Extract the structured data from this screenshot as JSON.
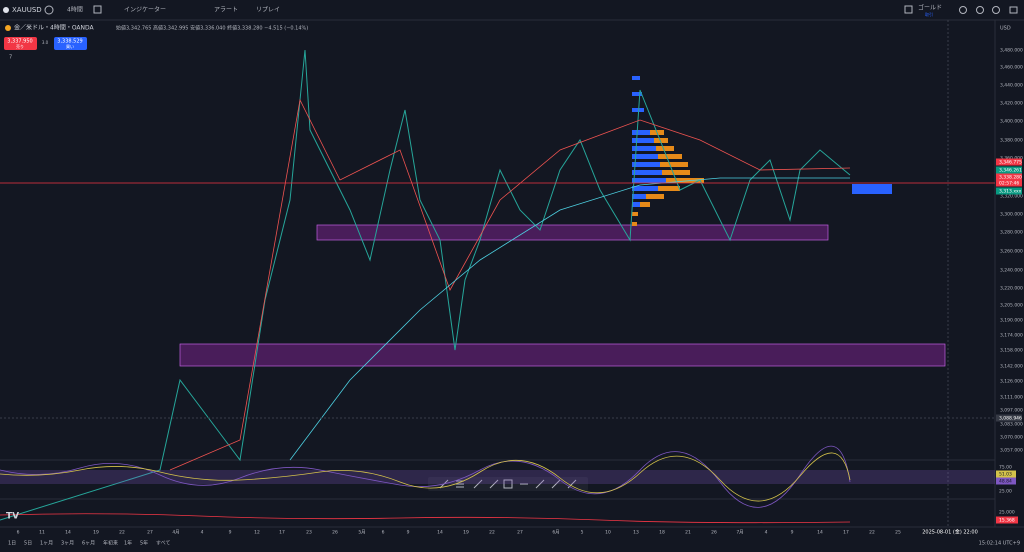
{
  "toolbar": {
    "symbol": "XAUUSD",
    "interval": "4時間",
    "indicators": "インジケーター",
    "alert": "アラート",
    "replay": "リプレイ",
    "watch": "ゴールド",
    "watch_sub": "取引"
  },
  "legend": {
    "title": "金／米ドル・4時間・OANDA",
    "ohlc": "始値3,342.765 高値3,342.995 安値3,336.040 終値3,338.280 −4.515 (−0.14%)",
    "sell_price": "3,337.950",
    "sell": "売り",
    "spread": "3.0",
    "buy_price": "3,338.529",
    "buy": "買い",
    "count": "7"
  },
  "price_axis": {
    "currency": "USD",
    "labels": [
      "3,480.000",
      "3,460.000",
      "3,440.000",
      "3,420.000",
      "3,400.000",
      "3,380.000",
      "3,360.000",
      "3,320.000",
      "3,300.000",
      "3,280.000",
      "3,260.000",
      "3,240.000",
      "3,220.000",
      "3,205.000",
      "3,190.000",
      "3,174.000",
      "3,158.000",
      "3,142.000",
      "3,126.000",
      "3,111.000",
      "3,097.000",
      "3,083.000",
      "3,070.000",
      "3,057.000"
    ],
    "markers": [
      "3,346.775",
      "3,346.261",
      "3,338.280",
      "02:57:46",
      "3,313.xxx",
      "3,088.946"
    ]
  },
  "osc_axis": {
    "labels": [
      "75.00",
      "51.03",
      "48.84",
      "25.00"
    ]
  },
  "vol_axis": {
    "labels": [
      "25.000",
      "15.368"
    ]
  },
  "time_axis": {
    "labels": [
      "6",
      "11",
      "14",
      "19",
      "22",
      "27",
      "4月",
      "4",
      "9",
      "12",
      "17",
      "23",
      "26",
      "5月",
      "6",
      "9",
      "14",
      "19",
      "22",
      "27",
      "6月",
      "5",
      "10",
      "13",
      "18",
      "21",
      "26",
      "7月",
      "4",
      "9",
      "14",
      "17",
      "22",
      "25"
    ],
    "cursor": "2025-08-01 (金)  22:00"
  },
  "bottom": {
    "ranges": [
      "1日",
      "5日",
      "1ヶ月",
      "3ヶ月",
      "6ヶ月",
      "年初来",
      "1年",
      "5年",
      "すべて"
    ],
    "clock": "15:02:14 UTC+9"
  }
}
